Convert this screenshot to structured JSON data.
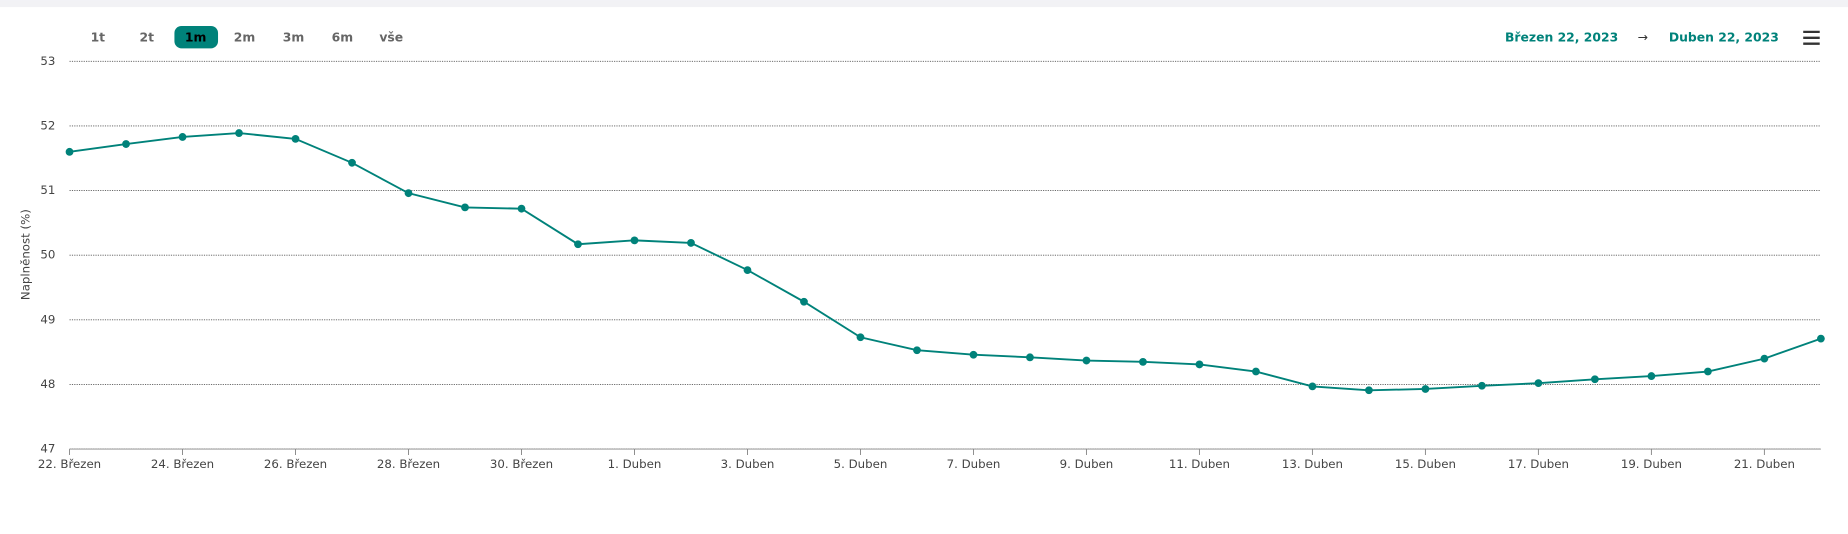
{
  "range_selector": {
    "buttons": [
      "1t",
      "2t",
      "1m",
      "2m",
      "3m",
      "6m",
      "vše"
    ],
    "selected": 2
  },
  "date_range": {
    "from": "Březen 22, 2023",
    "arrow": "→",
    "to": "Duben 22, 2023"
  },
  "chart_data": {
    "type": "line",
    "y_label": "Naplněnost (%)",
    "categories": [
      "22. Březen",
      null,
      "24. Březen",
      null,
      "26. Březen",
      null,
      "28. Březen",
      null,
      "30. Březen",
      null,
      "1. Duben",
      null,
      "3. Duben",
      null,
      "5. Duben",
      null,
      "7. Duben",
      null,
      "9. Duben",
      null,
      "11. Duben",
      null,
      "13. Duben",
      null,
      "15. Duben",
      null,
      "17. Duben",
      null,
      "19. Duben",
      null,
      "21. Duben",
      null
    ],
    "series": [
      {
        "name": "Naplněnost",
        "color": "#00827a",
        "values": [
          51.6,
          51.72,
          51.83,
          51.89,
          51.8,
          51.43,
          50.96,
          50.74,
          50.72,
          50.17,
          50.23,
          50.19,
          49.77,
          49.28,
          48.73,
          48.53,
          48.46,
          48.42,
          48.37,
          48.35,
          48.31,
          48.2,
          47.97,
          47.91,
          47.93,
          47.98,
          48.02,
          48.08,
          48.13,
          48.2,
          48.4,
          48.71
        ]
      }
    ],
    "ylim": [
      47,
      53
    ],
    "yticks": [
      47,
      48,
      49,
      50,
      51,
      52,
      53
    ],
    "grid": true
  }
}
